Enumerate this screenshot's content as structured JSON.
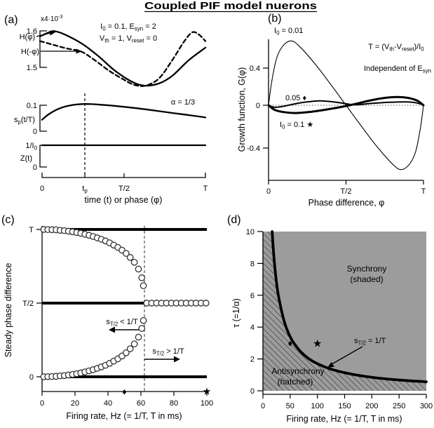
{
  "title": "Coupled PIF model nuerons",
  "panels": {
    "a": {
      "label": "(a)",
      "scale_note": "x4·10^{-3}",
      "cond1": "I_{0} = 0.1, E_{syn} = 2",
      "cond2": "V_{th} = 1, V_{reset} = 0",
      "alpha_note": "α = 1/3",
      "h_ticks": [
        "1.6",
        "1.5"
      ],
      "h_curve_labels": [
        "H(φ)",
        "H(-φ)"
      ],
      "sp_label": "s_{p}(t/T)",
      "sp_ticks": [
        "0.1",
        "0"
      ],
      "z_label": "Z(t)",
      "z_ticks": [
        "1/I_{0}",
        "0"
      ],
      "x_ticks": [
        "0",
        "t_{p}",
        "T/2",
        "T"
      ],
      "x_label": "time (t) or phase (φ)"
    },
    "b": {
      "label": "(b)",
      "curve_label_001": "I_{0} = 0.01",
      "curve_label_005": "0.05 ♦",
      "curve_label_01": "I_{0} = 0.1 ★",
      "eq_note": "T = (V_{th}-V_{reset})/I_{0}",
      "indep_note": "Independent of E_{syn}",
      "y_label": "Growth function, G(φ)",
      "y_ticks": [
        "0.4",
        "0",
        "-0.4"
      ],
      "x_ticks": [
        "0",
        "T/2",
        "T"
      ],
      "x_label": "Phase difference, φ"
    },
    "c": {
      "label": "(c)",
      "y_label": "Steady phase difference",
      "y_ticks": [
        "T",
        "T/2",
        "0"
      ],
      "x_ticks": [
        "0",
        "20",
        "40",
        "60",
        "80",
        "100"
      ],
      "x_label": "Firing rate, Hz (= 1/T, T in ms)",
      "arrow_left_label": "s_{T/2} < 1/T",
      "arrow_right_label": "s_{T/2} > 1/T"
    },
    "d": {
      "label": "(d)",
      "y_label": "τ (=1/α)",
      "y_ticks": [
        "10",
        "8",
        "6",
        "4",
        "2",
        "0"
      ],
      "x_ticks": [
        "0",
        "50",
        "100",
        "150",
        "200",
        "250",
        "300"
      ],
      "x_label": "Firing rate, Hz (= 1/T, T in ms)",
      "region_synchrony_1": "Synchrony",
      "region_synchrony_2": "(shaded)",
      "region_antisynchrony_1": "Antisynchrony",
      "region_antisynchrony_2": "(hatched)",
      "boundary_label": "s_{T/2} = 1/T"
    }
  },
  "colors": {
    "ink": "#000000",
    "shaded_region": "#9c9c9c",
    "hatch_line": "#3a3a3a",
    "circle_stroke": "#333333"
  },
  "chart_data": [
    {
      "id": "a_H",
      "type": "line",
      "title": "Interaction functions (scale x4e-3)",
      "x_range_units_of_T": [
        0,
        1
      ],
      "y_ticks": [
        1.6,
        1.5
      ],
      "series": [
        {
          "name": "H(φ)",
          "width": 2.3,
          "points": [
            [
              0,
              1.585
            ],
            [
              0.06,
              1.597
            ],
            [
              0.09,
              1.599
            ],
            [
              0.15,
              1.59
            ],
            [
              0.25,
              1.566
            ],
            [
              0.35,
              1.532
            ],
            [
              0.45,
              1.492
            ],
            [
              0.55,
              1.462
            ],
            [
              0.63,
              1.45
            ],
            [
              0.72,
              1.456
            ],
            [
              0.8,
              1.477
            ],
            [
              0.9,
              1.52
            ],
            [
              1,
              1.554
            ]
          ]
        },
        {
          "name": "H(-φ)",
          "width": 2.3,
          "dash": "6 4",
          "points": [
            [
              0,
              1.572
            ],
            [
              0.08,
              1.562
            ],
            [
              0.16,
              1.552
            ],
            [
              0.25,
              1.543
            ],
            [
              0.33,
              1.52
            ],
            [
              0.42,
              1.49
            ],
            [
              0.5,
              1.468
            ],
            [
              0.57,
              1.452
            ],
            [
              0.64,
              1.45
            ],
            [
              0.72,
              1.47
            ],
            [
              0.8,
              1.52
            ],
            [
              0.87,
              1.57
            ],
            [
              0.92,
              1.596
            ],
            [
              0.96,
              1.59
            ],
            [
              1,
              1.572
            ]
          ]
        }
      ]
    },
    {
      "id": "a_sp",
      "type": "line",
      "title": "Synaptic waveform s_p(t/T), peak at t_p = 0.26T",
      "y_ticks": [
        0.1,
        0
      ],
      "series": [
        {
          "name": "s_p(t/T)",
          "width": 2.3,
          "points": [
            [
              0,
              0.044
            ],
            [
              0.04,
              0.065
            ],
            [
              0.1,
              0.086
            ],
            [
              0.17,
              0.099
            ],
            [
              0.26,
              0.105
            ],
            [
              0.36,
              0.102
            ],
            [
              0.5,
              0.094
            ],
            [
              0.65,
              0.083
            ],
            [
              0.8,
              0.07
            ],
            [
              0.9,
              0.062
            ],
            [
              1,
              0.053
            ]
          ]
        }
      ]
    },
    {
      "id": "a_Z",
      "type": "line",
      "title": "Phase response Z(t) constant at 1/I0",
      "series": [
        {
          "name": "Z(t)",
          "width": 2.3,
          "points": [
            [
              0,
              1
            ],
            [
              1,
              1
            ]
          ]
        }
      ]
    },
    {
      "id": "b",
      "type": "line",
      "title": "Growth function G(φ) vs phase difference",
      "ylim": [
        -0.75,
        0.75
      ],
      "series": [
        {
          "name": "I0 = 0.01",
          "width": 1.1,
          "points": [
            [
              0,
              0
            ],
            [
              0.02,
              0.25
            ],
            [
              0.05,
              0.5
            ],
            [
              0.09,
              0.64
            ],
            [
              0.145,
              0.7
            ],
            [
              0.2,
              0.64
            ],
            [
              0.3,
              0.45
            ],
            [
              0.4,
              0.23
            ],
            [
              0.5,
              0
            ],
            [
              0.6,
              -0.23
            ],
            [
              0.7,
              -0.45
            ],
            [
              0.8,
              -0.64
            ],
            [
              0.855,
              -0.7
            ],
            [
              0.91,
              -0.64
            ],
            [
              0.95,
              -0.5
            ],
            [
              0.98,
              -0.25
            ],
            [
              1,
              0
            ]
          ]
        },
        {
          "name": "I0 = 0.05",
          "width": 2,
          "points": [
            [
              0,
              0
            ],
            [
              0.04,
              -0.022
            ],
            [
              0.1,
              -0.01
            ],
            [
              0.2,
              0.025
            ],
            [
              0.33,
              0.048
            ],
            [
              0.45,
              0.03
            ],
            [
              0.55,
              0.005
            ],
            [
              0.65,
              0.018
            ],
            [
              0.78,
              0.032
            ],
            [
              0.9,
              0.036
            ],
            [
              0.97,
              0.02
            ],
            [
              1,
              0
            ]
          ]
        },
        {
          "name": "I0 = 0.1",
          "width": 3,
          "points": [
            [
              0,
              0
            ],
            [
              0.04,
              -0.05
            ],
            [
              0.1,
              -0.075
            ],
            [
              0.18,
              -0.085
            ],
            [
              0.28,
              -0.07
            ],
            [
              0.38,
              -0.045
            ],
            [
              0.48,
              -0.015
            ],
            [
              0.55,
              0.01
            ],
            [
              0.65,
              0.05
            ],
            [
              0.75,
              0.08
            ],
            [
              0.83,
              0.09
            ],
            [
              0.9,
              0.08
            ],
            [
              0.96,
              0.05
            ],
            [
              1,
              0
            ]
          ]
        }
      ]
    },
    {
      "id": "c",
      "type": "scatter",
      "title": "Steady phase difference vs firing rate, bifurcation near 62 Hz",
      "xlim": [
        0,
        100
      ],
      "bifurcation_hz": 62,
      "lines": [
        {
          "name": "branch-T",
          "y": 1,
          "x": [
            0,
            100
          ],
          "width": 4
        },
        {
          "name": "branch-T/2",
          "y": 0.5,
          "x": [
            0,
            62
          ],
          "width": 4
        },
        {
          "name": "branch-0",
          "y": 0,
          "x": [
            0,
            100
          ],
          "width": 4
        }
      ],
      "scatter": [
        {
          "name": "upper-branch",
          "points": [
            [
              1,
              1.0
            ],
            [
              3.5,
              0.999
            ],
            [
              6,
              0.998
            ],
            [
              8.5,
              0.997
            ],
            [
              11,
              0.994
            ],
            [
              13.5,
              0.992
            ],
            [
              16,
              0.988
            ],
            [
              18.5,
              0.984
            ],
            [
              21,
              0.979
            ],
            [
              23.5,
              0.974
            ],
            [
              26,
              0.967
            ],
            [
              28.5,
              0.96
            ],
            [
              31,
              0.952
            ],
            [
              33.5,
              0.943
            ],
            [
              36,
              0.933
            ],
            [
              38.5,
              0.922
            ],
            [
              41,
              0.909
            ],
            [
              43.5,
              0.894
            ],
            [
              46,
              0.878
            ],
            [
              48.5,
              0.859
            ],
            [
              51,
              0.837
            ],
            [
              53.5,
              0.81
            ],
            [
              56,
              0.777
            ],
            [
              58.5,
              0.731
            ],
            [
              60.5,
              0.672
            ],
            [
              61.5,
              0.618
            ]
          ]
        },
        {
          "name": "lower-branch",
          "points": [
            [
              1,
              0
            ],
            [
              3.5,
              0.001
            ],
            [
              6,
              0.002
            ],
            [
              8.5,
              0.003
            ],
            [
              11,
              0.006
            ],
            [
              13.5,
              0.008
            ],
            [
              16,
              0.012
            ],
            [
              18.5,
              0.016
            ],
            [
              21,
              0.021
            ],
            [
              23.5,
              0.026
            ],
            [
              26,
              0.033
            ],
            [
              28.5,
              0.04
            ],
            [
              31,
              0.048
            ],
            [
              33.5,
              0.057
            ],
            [
              36,
              0.067
            ],
            [
              38.5,
              0.078
            ],
            [
              41,
              0.091
            ],
            [
              43.5,
              0.106
            ],
            [
              46,
              0.122
            ],
            [
              48.5,
              0.141
            ],
            [
              51,
              0.163
            ],
            [
              53.5,
              0.19
            ],
            [
              56,
              0.223
            ],
            [
              58.5,
              0.269
            ],
            [
              60.5,
              0.328
            ],
            [
              61.5,
              0.382
            ]
          ]
        },
        {
          "name": "post-bifurcation-T/2",
          "points": [
            [
              63.5,
              0.5
            ],
            [
              66.5,
              0.5
            ],
            [
              69.5,
              0.5
            ],
            [
              72.5,
              0.5
            ],
            [
              75.5,
              0.5
            ],
            [
              78.5,
              0.5
            ],
            [
              81.5,
              0.5
            ],
            [
              84.5,
              0.5
            ],
            [
              87.5,
              0.5
            ],
            [
              90.5,
              0.5
            ],
            [
              93.5,
              0.5
            ],
            [
              96.5,
              0.5
            ],
            [
              99.5,
              0.5
            ]
          ]
        }
      ],
      "axis_markers": [
        {
          "glyph": "♦",
          "hz": 50,
          "size": 13
        },
        {
          "glyph": "★",
          "hz": 100,
          "size": 14
        }
      ]
    },
    {
      "id": "d",
      "type": "region",
      "title": "Synchrony / antisynchrony phase diagram",
      "xlim": [
        0,
        300
      ],
      "ylim": [
        0,
        10
      ],
      "boundary": {
        "name": "s_T/2 = 1/T",
        "width": 3.8,
        "points": [
          [
            17,
            10
          ],
          [
            19,
            8.9
          ],
          [
            22,
            7.7
          ],
          [
            26,
            6.5
          ],
          [
            30,
            5.7
          ],
          [
            35,
            4.9
          ],
          [
            40,
            4.25
          ],
          [
            46,
            3.7
          ],
          [
            53,
            3.2
          ],
          [
            61,
            2.8
          ],
          [
            70,
            2.43
          ],
          [
            82,
            2.07
          ],
          [
            95,
            1.79
          ],
          [
            110,
            1.55
          ],
          [
            130,
            1.31
          ],
          [
            155,
            1.1
          ],
          [
            185,
            0.92
          ],
          [
            220,
            0.77
          ],
          [
            260,
            0.65
          ],
          [
            300,
            0.57
          ]
        ]
      },
      "markers": [
        {
          "glyph": "♦",
          "x": 50,
          "y": 3,
          "size": 13
        },
        {
          "glyph": "★",
          "x": 100,
          "y": 3,
          "size": 15
        }
      ]
    }
  ]
}
